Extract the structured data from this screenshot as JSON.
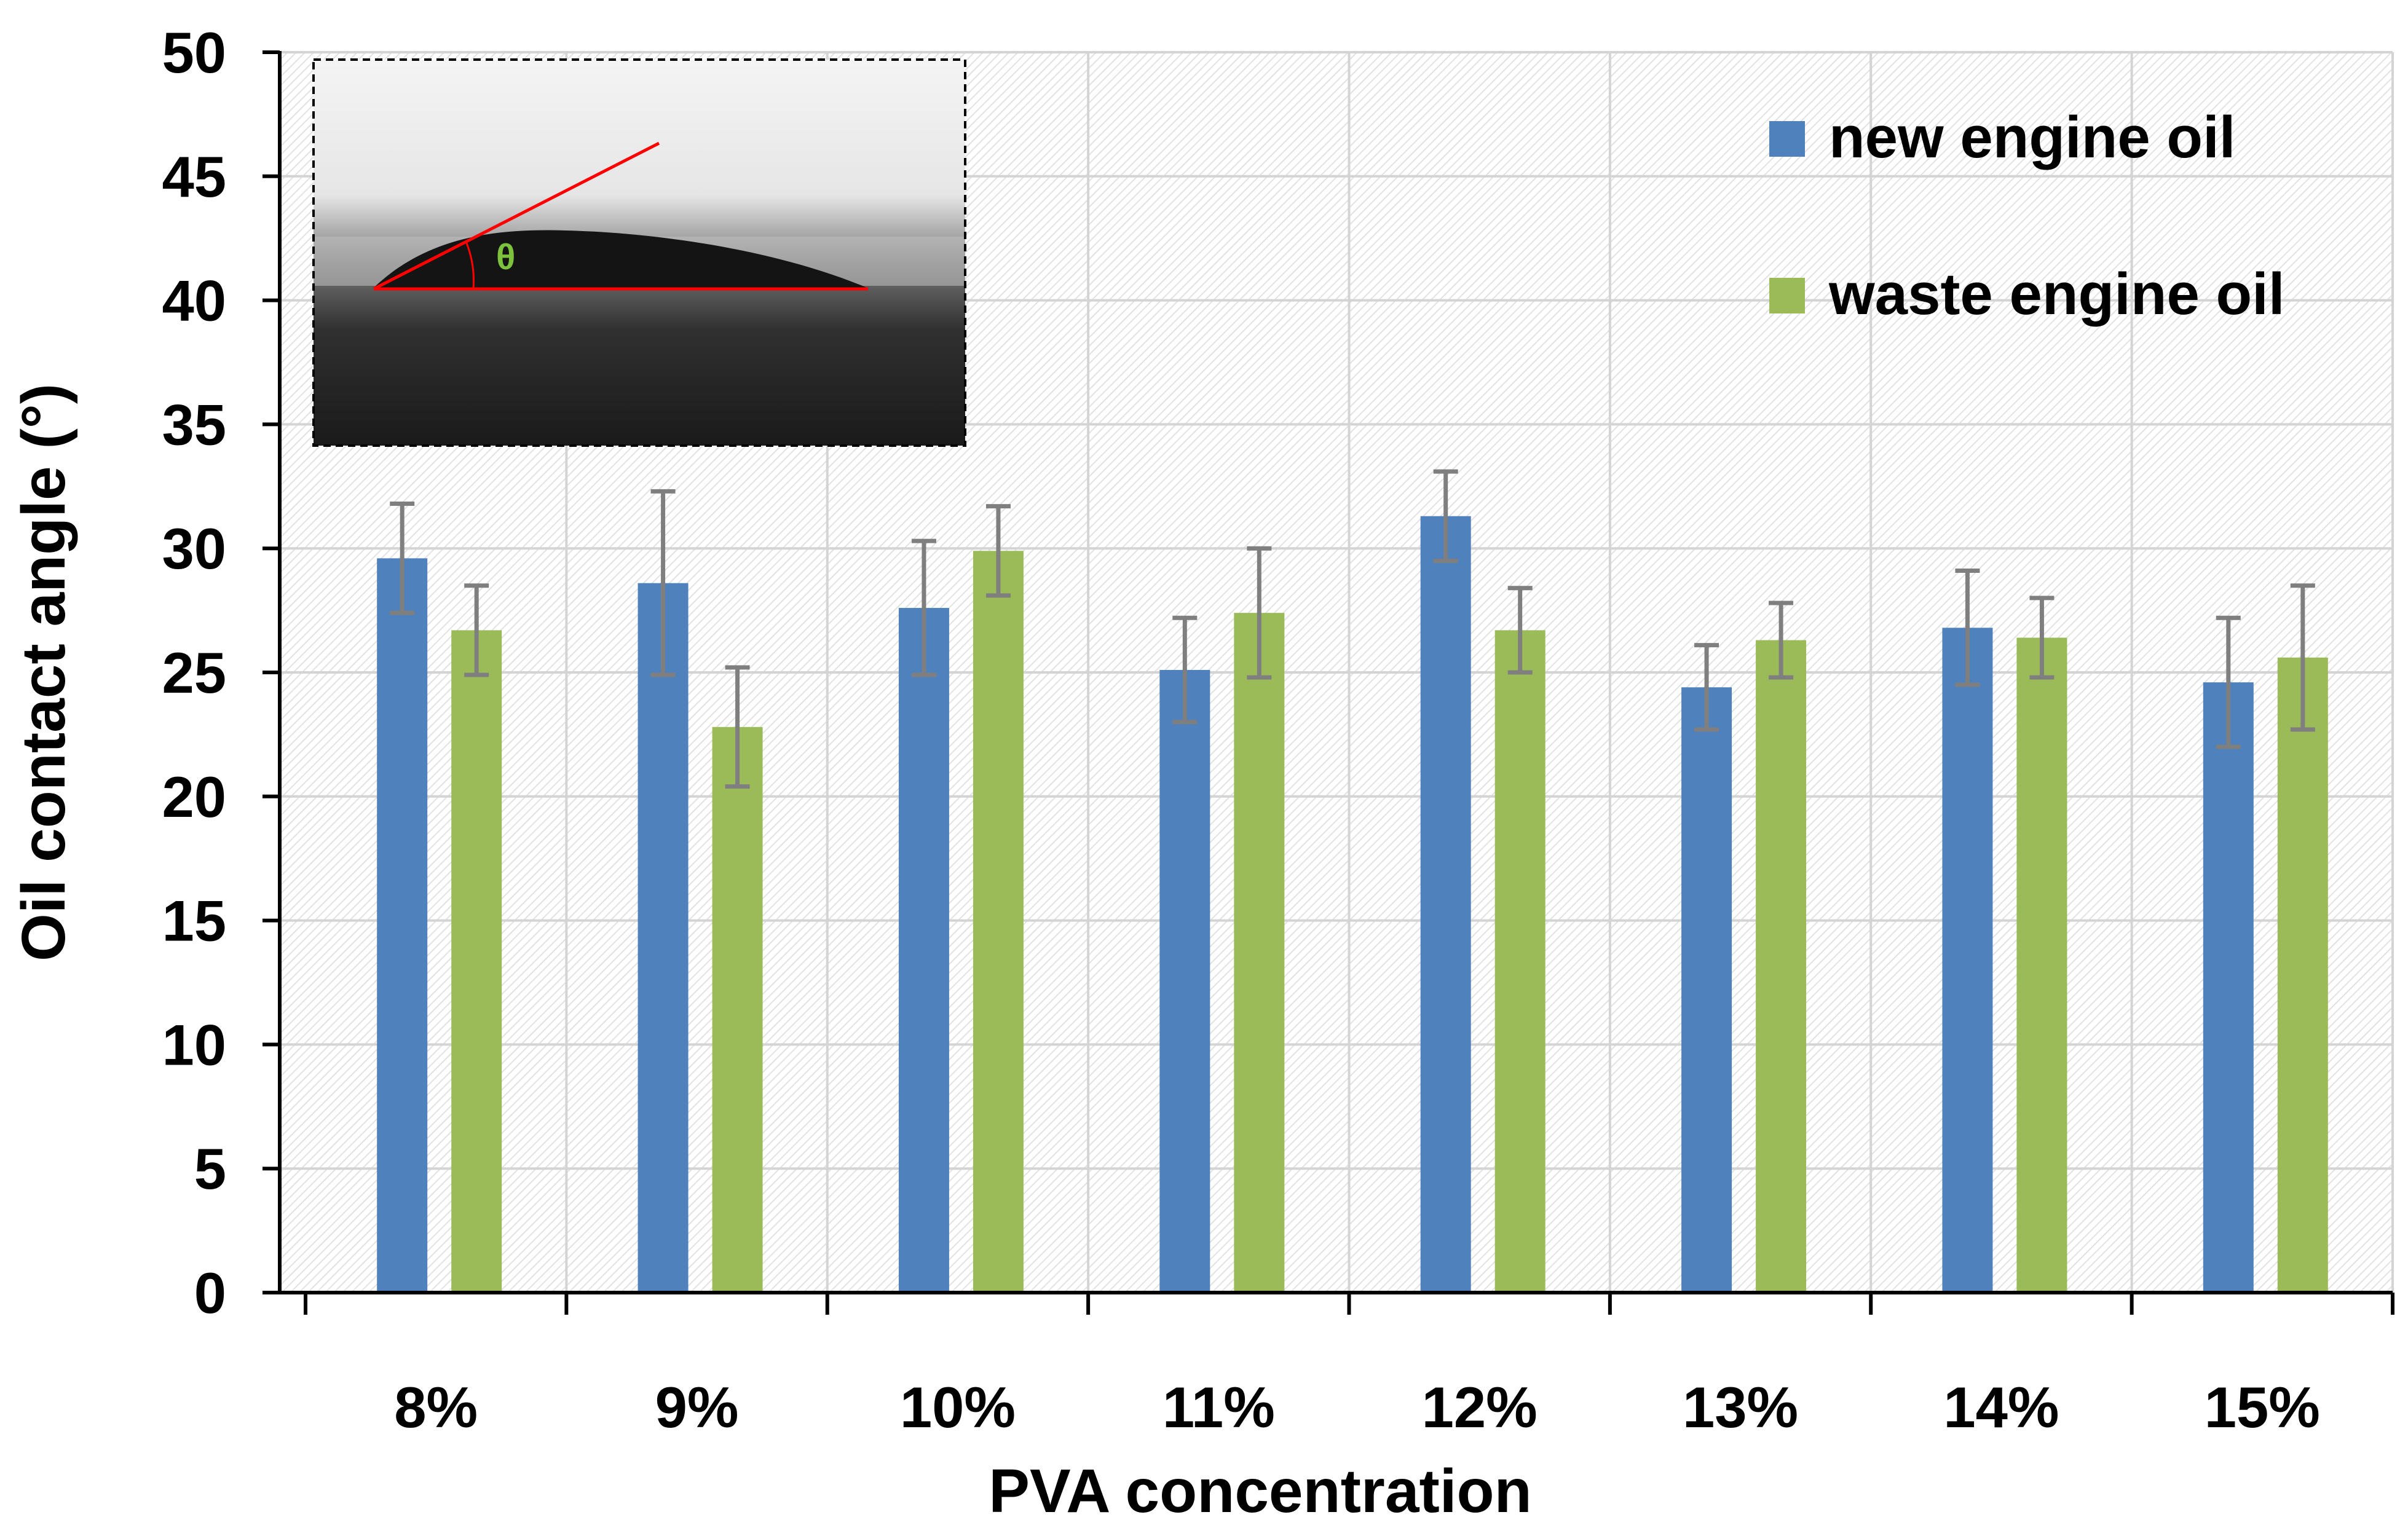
{
  "chart_data": {
    "type": "bar",
    "title": "",
    "xlabel": "PVA concentration",
    "ylabel": "Oil contact angle (°)",
    "ylim": [
      0,
      50
    ],
    "yticks": [
      "0",
      "5",
      "10",
      "15",
      "20",
      "25",
      "30",
      "35",
      "40",
      "45",
      "50"
    ],
    "categories": [
      "8%",
      "9%",
      "10%",
      "11%",
      "12%",
      "13%",
      "14%",
      "15%"
    ],
    "grid": true,
    "legend_position": "top-right",
    "series": [
      {
        "name": "new engine oil",
        "color": "#4f81bd",
        "values": [
          29.6,
          28.6,
          27.6,
          25.1,
          31.3,
          24.4,
          26.8,
          24.6
        ],
        "errors": [
          2.2,
          3.7,
          2.7,
          2.1,
          1.8,
          1.7,
          2.3,
          2.6
        ]
      },
      {
        "name": "waste engine oil",
        "color": "#9bbb59",
        "values": [
          26.7,
          22.8,
          29.9,
          27.4,
          26.7,
          26.3,
          26.4,
          25.6
        ],
        "errors": [
          1.8,
          2.4,
          1.8,
          2.6,
          1.7,
          1.5,
          1.6,
          2.9
        ]
      }
    ],
    "inset": {
      "description_label": "droplet contact angle image",
      "angle_symbol": "θ",
      "angle_color": "#7dc23c",
      "line_color": "#ff0000"
    }
  }
}
